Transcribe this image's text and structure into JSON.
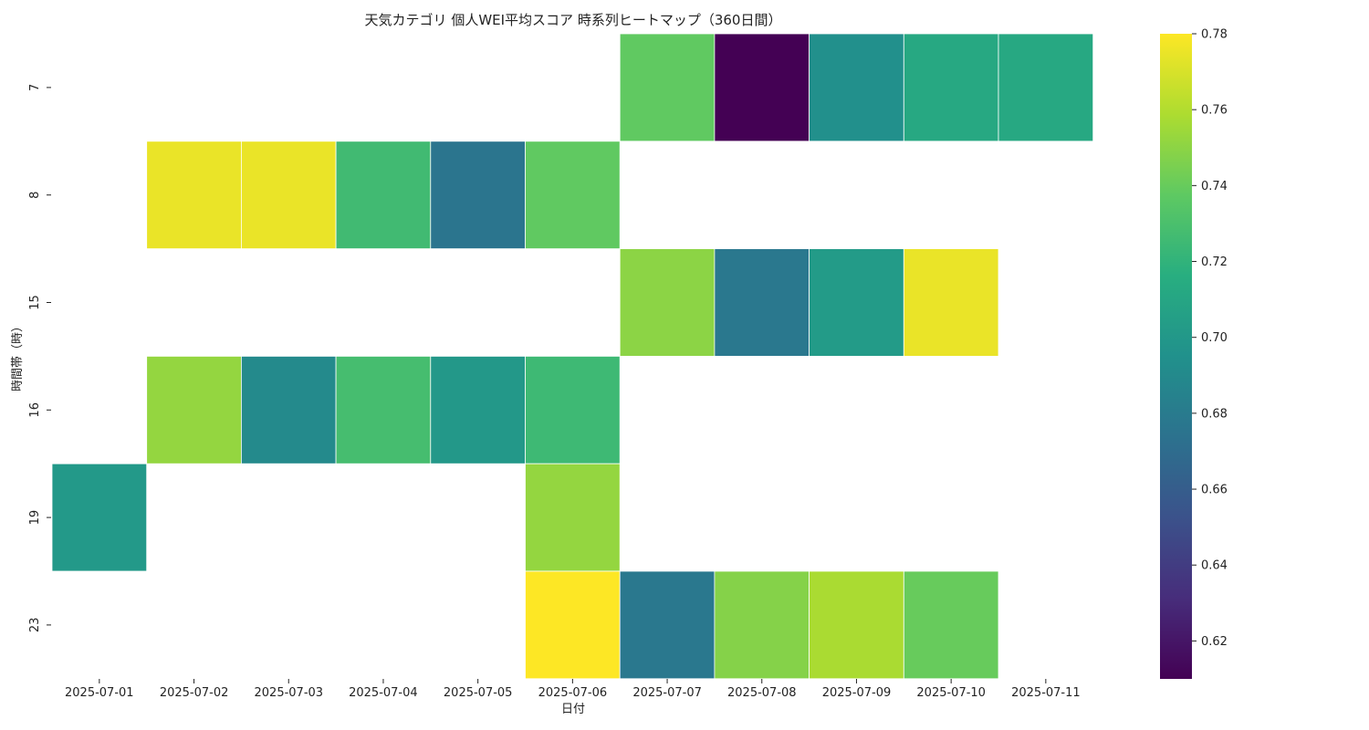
{
  "chart_data": {
    "type": "heatmap",
    "title": "天気カテゴリ 個人WEI平均スコア 時系列ヒートマップ（360日間）",
    "xlabel": "日付",
    "ylabel": "時間帯（時）",
    "x_categories": [
      "2025-07-01",
      "2025-07-02",
      "2025-07-03",
      "2025-07-04",
      "2025-07-05",
      "2025-07-06",
      "2025-07-07",
      "2025-07-08",
      "2025-07-09",
      "2025-07-10",
      "2025-07-11"
    ],
    "y_categories": [
      "7",
      "8",
      "15",
      "16",
      "19",
      "23"
    ],
    "values": [
      [
        null,
        null,
        null,
        null,
        null,
        null,
        0.738,
        0.61,
        0.694,
        0.712,
        0.712
      ],
      [
        null,
        0.775,
        0.775,
        0.726,
        0.676,
        0.738,
        null,
        null,
        null,
        null,
        null
      ],
      [
        null,
        null,
        null,
        null,
        null,
        null,
        0.75,
        0.678,
        0.702,
        0.775,
        null
      ],
      [
        null,
        0.752,
        0.69,
        0.728,
        0.7,
        0.725,
        null,
        null,
        null,
        null,
        null
      ],
      [
        0.701,
        null,
        null,
        null,
        null,
        0.752,
        null,
        null,
        null,
        null,
        null
      ],
      [
        null,
        null,
        null,
        null,
        null,
        0.78,
        0.678,
        0.748,
        0.758,
        0.74,
        null
      ]
    ],
    "colorbar": {
      "colormap": "viridis",
      "vmin": 0.61,
      "vmax": 0.78,
      "ticks": [
        "0.62",
        "0.64",
        "0.66",
        "0.68",
        "0.70",
        "0.72",
        "0.74",
        "0.76",
        "0.78"
      ]
    }
  }
}
